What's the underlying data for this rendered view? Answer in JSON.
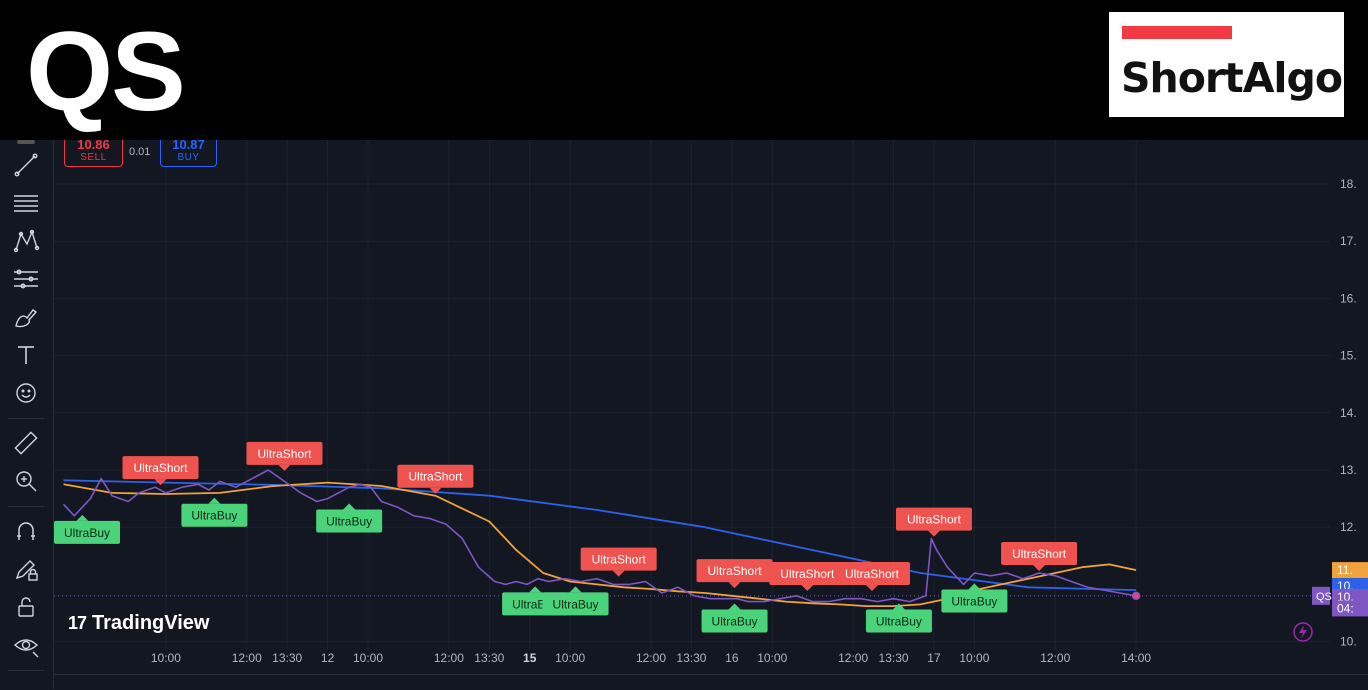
{
  "header": {
    "ticker": "QS",
    "logo_text": "ShortAlgo"
  },
  "trade": {
    "sell_price": "10.86",
    "sell_label": "SELL",
    "spread": "0.01",
    "buy_price": "10.87",
    "buy_label": "BUY"
  },
  "watermark": "TradingView",
  "colors": {
    "background": "#131722",
    "price_line": "#7e57c2",
    "ma_fast": "#f0a33c",
    "ma_slow": "#2d62e8",
    "short_signal": "#ef5350",
    "buy_signal": "#4bd37b"
  },
  "toolbar_icons": [
    "crosshair-icon",
    "trend-line-icon",
    "fib-retracement-icon",
    "pattern-icon",
    "prediction-icon",
    "brush-icon",
    "text-icon",
    "emoji-icon",
    "ruler-icon",
    "zoom-in-icon",
    "magnet-icon",
    "lock-drawing-icon",
    "lock-icon",
    "eye-icon"
  ],
  "chart_data": {
    "type": "line",
    "title": "",
    "xlabel": "",
    "ylabel": "",
    "y_ticks": [
      "18.",
      "17.",
      "16.",
      "15.",
      "14.",
      "13.",
      "12.",
      "10."
    ],
    "y_tick_values": [
      18,
      17,
      16,
      15,
      14,
      13,
      12,
      10
    ],
    "ylim": [
      9.8,
      18.8
    ],
    "x_ticks": [
      {
        "label": "10:00",
        "idx": 1.0
      },
      {
        "label": "12:00",
        "idx": 2.5
      },
      {
        "label": "13:30",
        "idx": 3.25
      },
      {
        "label": "12",
        "idx": 4.0,
        "bold": false
      },
      {
        "label": "10:00",
        "idx": 4.75
      },
      {
        "label": "12:00",
        "idx": 6.25
      },
      {
        "label": "13:30",
        "idx": 7.0
      },
      {
        "label": "15",
        "idx": 7.75,
        "bold": true
      },
      {
        "label": "10:00",
        "idx": 8.5
      },
      {
        "label": "12:00",
        "idx": 10.0
      },
      {
        "label": "13:30",
        "idx": 10.75
      },
      {
        "label": "16",
        "idx": 11.5
      },
      {
        "label": "10:00",
        "idx": 12.25
      },
      {
        "label": "12:00",
        "idx": 13.75
      },
      {
        "label": "13:30",
        "idx": 14.5
      },
      {
        "label": "17",
        "idx": 15.25
      },
      {
        "label": "10:00",
        "idx": 16.0
      },
      {
        "label": "12:00",
        "idx": 17.5
      },
      {
        "label": "14:00",
        "idx": 19.0
      }
    ],
    "xlim": [
      -0.9,
      19.2
    ],
    "price_labels": [
      {
        "value": 11.25,
        "text": "11.",
        "color": "#f0a33c"
      },
      {
        "value": 10.97,
        "text": "10.",
        "color": "#2d62e8"
      },
      {
        "value": 10.78,
        "text": "10.",
        "color": "#7e57c2"
      },
      {
        "value": 10.58,
        "text": "04:",
        "color": "#7e57c2"
      }
    ],
    "current_label": "QS",
    "series": [
      {
        "key": "price",
        "color": "#7e57c2",
        "x": [
          -0.9,
          -0.7,
          -0.4,
          -0.2,
          0.0,
          0.3,
          0.5,
          0.8,
          1.0,
          1.3,
          1.6,
          1.8,
          2.0,
          2.3,
          2.6,
          2.9,
          3.2,
          3.5,
          3.8,
          4.0,
          4.2,
          4.4,
          4.6,
          4.8,
          5.0,
          5.3,
          5.6,
          5.9,
          6.2,
          6.5,
          6.8,
          7.1,
          7.3,
          7.5,
          7.7,
          7.9,
          8.1,
          8.4,
          8.7,
          9.0,
          9.3,
          9.6,
          9.9,
          10.2,
          10.5,
          10.8,
          11.1,
          11.4,
          11.6,
          11.8,
          12.1,
          12.4,
          12.7,
          13.0,
          13.3,
          13.6,
          13.9,
          14.2,
          14.5,
          14.8,
          15.1,
          15.2,
          15.3,
          15.5,
          15.8,
          16.0,
          16.3,
          16.6,
          16.9,
          17.2,
          17.5,
          17.8,
          18.1,
          18.4,
          18.7,
          19.0
        ],
        "y": [
          12.4,
          12.2,
          12.5,
          12.85,
          12.55,
          12.45,
          12.6,
          12.7,
          12.6,
          12.7,
          12.75,
          12.65,
          12.8,
          12.7,
          12.85,
          13.0,
          12.8,
          12.6,
          12.45,
          12.5,
          12.6,
          12.7,
          12.75,
          12.7,
          12.45,
          12.35,
          12.2,
          12.15,
          12.05,
          11.8,
          11.3,
          11.05,
          11.0,
          11.05,
          11.0,
          11.1,
          11.05,
          11.1,
          11.05,
          11.1,
          11.0,
          11.0,
          11.05,
          10.85,
          10.95,
          10.8,
          10.75,
          10.75,
          10.75,
          10.7,
          10.7,
          10.75,
          10.8,
          10.7,
          10.7,
          10.75,
          10.75,
          10.7,
          10.75,
          10.7,
          10.8,
          11.8,
          11.6,
          11.3,
          11.0,
          11.2,
          11.15,
          11.2,
          11.1,
          11.2,
          11.15,
          11.05,
          10.95,
          10.9,
          10.85,
          10.8
        ]
      },
      {
        "key": "ma_fast",
        "color": "#f0a33c",
        "x": [
          -0.9,
          0,
          1,
          2,
          3,
          4,
          5,
          6,
          7,
          7.5,
          8,
          8.5,
          9,
          9.5,
          10,
          10.5,
          11,
          11.5,
          12,
          12.5,
          13,
          13.5,
          14,
          14.5,
          15,
          15.5,
          16,
          16.5,
          17,
          17.5,
          18,
          18.5,
          19
        ],
        "y": [
          12.75,
          12.6,
          12.58,
          12.6,
          12.72,
          12.78,
          12.72,
          12.55,
          12.1,
          11.6,
          11.2,
          11.05,
          11.0,
          10.95,
          10.92,
          10.88,
          10.85,
          10.8,
          10.75,
          10.7,
          10.67,
          10.65,
          10.62,
          10.62,
          10.65,
          10.75,
          10.9,
          11.0,
          11.1,
          11.2,
          11.3,
          11.35,
          11.25
        ]
      },
      {
        "key": "ma_slow",
        "color": "#2d62e8",
        "x": [
          -0.9,
          1,
          3,
          5,
          7,
          9,
          11,
          13,
          15,
          17,
          19
        ],
        "y": [
          12.82,
          12.78,
          12.74,
          12.68,
          12.55,
          12.3,
          12.0,
          11.6,
          11.2,
          10.95,
          10.9
        ]
      }
    ],
    "signals": [
      {
        "type": "buy",
        "text": "UltraBuy",
        "idx": -0.55,
        "value": 12.25
      },
      {
        "type": "short",
        "text": "UltraShort",
        "idx": 0.9,
        "value": 12.7
      },
      {
        "type": "buy",
        "text": "UltraBuy",
        "idx": 1.9,
        "value": 12.55
      },
      {
        "type": "short",
        "text": "UltraShort",
        "idx": 3.2,
        "value": 12.95
      },
      {
        "type": "buy",
        "text": "UltraBuy",
        "idx": 4.4,
        "value": 12.45
      },
      {
        "type": "short",
        "text": "UltraShort",
        "idx": 6.0,
        "value": 12.55
      },
      {
        "type": "buy",
        "text": "UltraBuy",
        "idx": 7.85,
        "value": 11.0
      },
      {
        "type": "buy",
        "text": "UltraBuy",
        "idx": 8.6,
        "value": 11.0
      },
      {
        "type": "short",
        "text": "UltraShort",
        "idx": 9.4,
        "value": 11.1
      },
      {
        "type": "short",
        "text": "UltraShort",
        "idx": 11.55,
        "value": 10.9
      },
      {
        "type": "buy",
        "text": "UltraBuy",
        "idx": 11.55,
        "value": 10.7
      },
      {
        "type": "short",
        "text": "UltraShort",
        "idx": 12.9,
        "value": 10.85
      },
      {
        "type": "short",
        "text": "UltraShort",
        "idx": 14.1,
        "value": 10.85
      },
      {
        "type": "buy",
        "text": "UltraBuy",
        "idx": 14.6,
        "value": 10.7
      },
      {
        "type": "short",
        "text": "UltraShort",
        "idx": 15.25,
        "value": 11.8
      },
      {
        "type": "buy",
        "text": "UltraBuy",
        "idx": 16.0,
        "value": 11.05
      },
      {
        "type": "short",
        "text": "UltraShort",
        "idx": 17.2,
        "value": 11.2
      }
    ]
  }
}
